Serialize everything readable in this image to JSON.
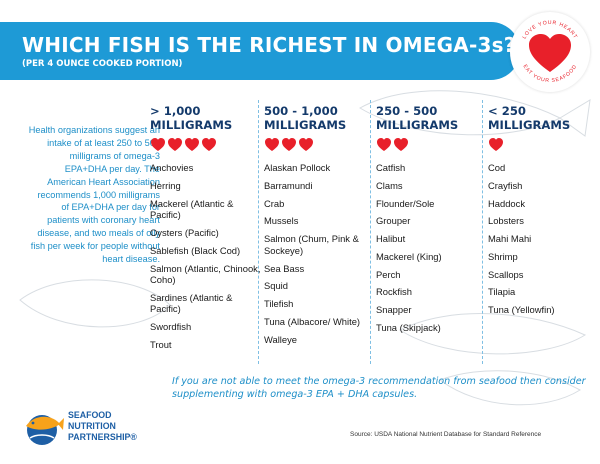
{
  "header": {
    "title": "WHICH FISH IS THE RICHEST IN OMEGA-3s?",
    "subtitle": "(PER 4 OUNCE COOKED PORTION)"
  },
  "badge": {
    "top_text": "LOVE YOUR HEART",
    "bottom_text": "EAT YOUR SEAFOOD"
  },
  "intro_text": "Health organizations suggest an intake of at least 250 to 500 milligrams of omega-3 EPA+DHA per day. The American Heart Association recommends 1,000 milligrams of EPA+DHA per day for patients with coronary heart disease, and two meals of oily fish per week for people without heart disease.",
  "columns": [
    {
      "range": "> 1,000",
      "unit": "MILLIGRAMS",
      "hearts": 4,
      "fish": [
        "Anchovies",
        "Herring",
        "Mackerel (Atlantic & Pacific)",
        "Oysters (Pacific)",
        "Sablefish (Black Cod)",
        "Salmon (Atlantic, Chinook, Coho)",
        "Sardines (Atlantic & Pacific)",
        "Swordfish",
        "Trout"
      ]
    },
    {
      "range": "500 - 1,000",
      "unit": "MILLIGRAMS",
      "hearts": 3,
      "fish": [
        "Alaskan Pollock",
        "Barramundi",
        "Crab",
        "Mussels",
        "Salmon (Chum, Pink & Sockeye)",
        "Sea Bass",
        "Squid",
        "Tilefish",
        "Tuna (Albacore/ White)",
        "Walleye"
      ]
    },
    {
      "range": "250 - 500",
      "unit": "MILLIGRAMS",
      "hearts": 2,
      "fish": [
        "Catfish",
        "Clams",
        "Flounder/Sole",
        "Grouper",
        "Halibut",
        "Mackerel (King)",
        "Perch",
        "Rockfish",
        "Snapper",
        "Tuna (Skipjack)"
      ]
    },
    {
      "range": "< 250",
      "unit": "MILLIGRAMS",
      "hearts": 1,
      "fish": [
        "Cod",
        "Crayfish",
        "Haddock",
        "Lobsters",
        "Mahi Mahi",
        "Shrimp",
        "Scallops",
        "Tilapia",
        "Tuna (Yellowfin)"
      ]
    }
  ],
  "note": "If you are not able to meet the omega-3 recommendation from seafood then consider supplementing with omega-3 EPA + DHA capsules.",
  "logo": {
    "line1": "SEAFOOD",
    "line2": "NUTRITION",
    "line3": "PARTNERSHIP®"
  },
  "source": "Source: USDA National Nutrient Database for Standard Reference",
  "colors": {
    "banner": "#1e9ad6",
    "heart": "#e8202a",
    "heading": "#143a6b",
    "accent_text": "#1e8fc8",
    "logo_orange": "#f7a21b"
  },
  "icons": {
    "heart": "heart-icon",
    "logo": "fish-logo-icon"
  }
}
